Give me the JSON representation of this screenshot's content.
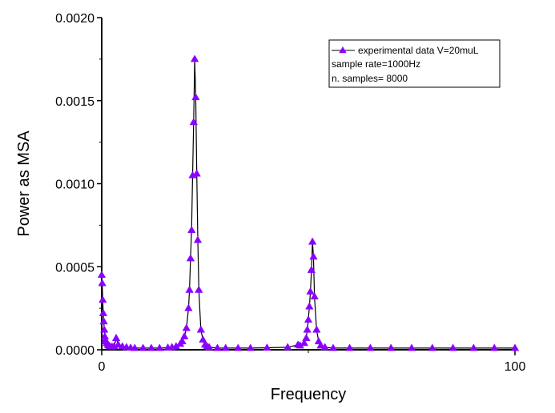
{
  "chart_data": {
    "type": "line",
    "title": "",
    "xlabel": "Frequency",
    "ylabel": "Power as MSA",
    "xlim": [
      0,
      100
    ],
    "ylim": [
      0,
      0.002
    ],
    "x_ticks": [
      0,
      100
    ],
    "x_tick_labels": [
      "0",
      "100"
    ],
    "y_ticks": [
      0,
      0.0005,
      0.001,
      0.0015,
      0.002
    ],
    "y_tick_labels": [
      "0.0000",
      "0.0005",
      "0.0010",
      "0.0015",
      "0.0020"
    ],
    "grid": false,
    "line_color": "#000000",
    "marker_color": "#8b00ff",
    "marker": "triangle-up",
    "legend": {
      "placement": "top-right",
      "series_label": "experimental data V=20muL",
      "notes": [
        "sample rate=1000Hz",
        "n. samples= 8000"
      ]
    },
    "series": [
      {
        "name": "experimental data V=20muL",
        "x": [
          0,
          0.125,
          0.25,
          0.375,
          0.5,
          0.625,
          0.75,
          0.875,
          1.0,
          1.25,
          1.5,
          1.75,
          2.0,
          2.5,
          3.0,
          3.5,
          4.0,
          5.0,
          6.0,
          7.0,
          8.0,
          10.0,
          12.0,
          14.0,
          16.0,
          17.0,
          18.0,
          19.0,
          19.5,
          20.0,
          20.5,
          21.0,
          21.25,
          21.5,
          21.75,
          22.0,
          22.25,
          22.5,
          22.75,
          23.0,
          23.25,
          23.5,
          24.0,
          24.5,
          25.0,
          25.5,
          26.0,
          28.0,
          30.0,
          33.0,
          36.0,
          40.0,
          45.0,
          47.5,
          48.0,
          49.0,
          49.5,
          49.75,
          50.0,
          50.25,
          50.5,
          50.75,
          51.0,
          51.25,
          51.5,
          52.0,
          52.5,
          53.0,
          54.0,
          56.0,
          60.0,
          65.0,
          70.0,
          75.0,
          80.0,
          85.0,
          90.0,
          95.0,
          100.0
        ],
        "y": [
          0.00045,
          0.0004,
          0.0003,
          0.00022,
          0.00017,
          0.00012,
          8e-05,
          6e-05,
          5e-05,
          4e-05,
          3e-05,
          2.5e-05,
          2e-05,
          1.8e-05,
          2e-05,
          7e-05,
          3e-05,
          2e-05,
          1.5e-05,
          1.2e-05,
          1e-05,
          1e-05,
          1e-05,
          1e-05,
          1.2e-05,
          1.5e-05,
          2e-05,
          3.5e-05,
          5e-05,
          8e-05,
          0.00013,
          0.00025,
          0.00036,
          0.00055,
          0.00072,
          0.00105,
          0.00137,
          0.00175,
          0.00152,
          0.00106,
          0.00066,
          0.00036,
          0.00012,
          6e-05,
          3e-05,
          2e-05,
          1.5e-05,
          1e-05,
          1e-05,
          1e-05,
          1e-05,
          1.2e-05,
          1.5e-05,
          3e-05,
          2.5e-05,
          4e-05,
          7e-05,
          0.00012,
          0.00018,
          0.00026,
          0.00035,
          0.00048,
          0.00065,
          0.00056,
          0.00032,
          0.00012,
          5e-05,
          2.5e-05,
          1.5e-05,
          1e-05,
          1e-05,
          1e-05,
          1e-05,
          1e-05,
          1e-05,
          1e-05,
          1e-05,
          1e-05,
          1e-05
        ]
      }
    ]
  }
}
